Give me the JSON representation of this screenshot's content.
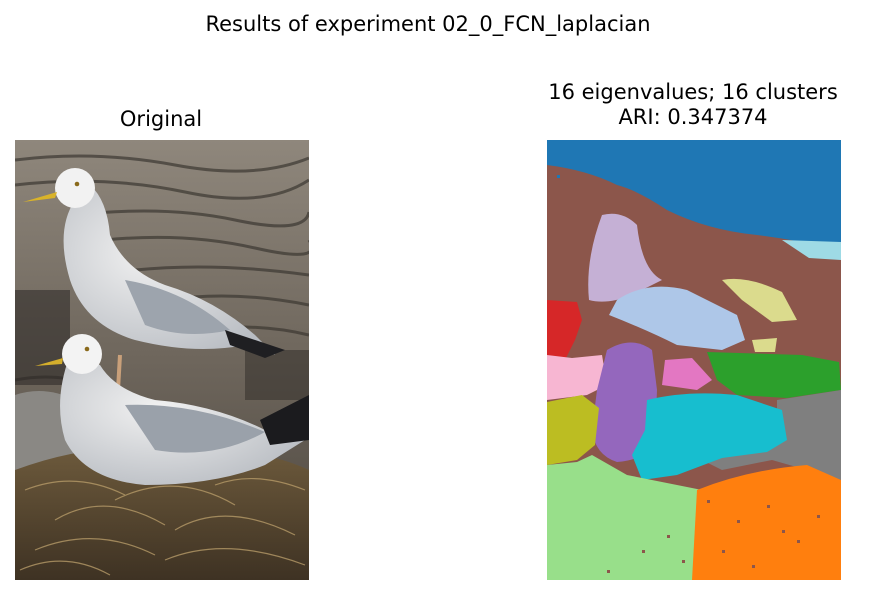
{
  "figure": {
    "suptitle": "Results of experiment 02_0_FCN_laplacian",
    "panels": [
      {
        "title": "Original"
      },
      {
        "title": "16 eigenvalues; 16 clusters\nARI: 0.347374"
      }
    ]
  },
  "segmentation": {
    "n_eigenvalues": 16,
    "n_clusters": 16,
    "ari": 0.347374,
    "cluster_colors": [
      "#1f77b4",
      "#aec7e8",
      "#ff7f0e",
      "#2ca02c",
      "#d62728",
      "#9467bd",
      "#8c564b",
      "#e377c2",
      "#f7b6d2",
      "#7f7f7f",
      "#bcbd22",
      "#dbdb8d",
      "#17becf",
      "#9edae5",
      "#98df8a",
      "#c5b0d5"
    ]
  }
}
